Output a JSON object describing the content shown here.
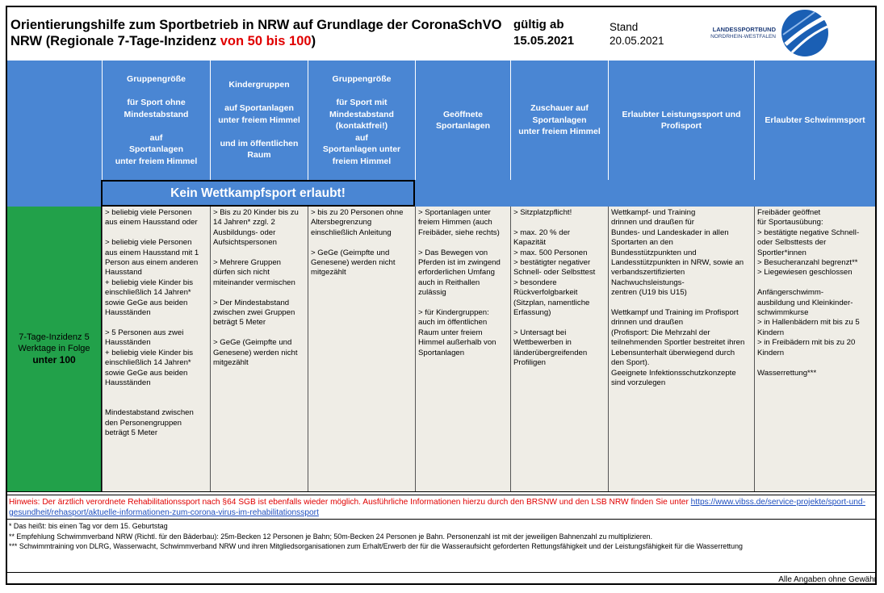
{
  "title": {
    "line1": "Orientierungshilfe zum Sportbetrieb in NRW auf Grundlage der CoronaSchVO",
    "line2_pre": "NRW (Regionale 7-Tage-Inzidenz ",
    "line2_red": "von 50 bis 100",
    "line2_post": ")"
  },
  "valid": {
    "label": "gültig ab",
    "date": "15.05.2021"
  },
  "stand": {
    "label": "Stand",
    "date": "20.05.2021"
  },
  "logo": {
    "line1": "LANDESSPORTBUND",
    "line2": "NORDRHEIN-WESTFALEN",
    "color": "#1a5fb4"
  },
  "colors": {
    "header_blue": "#4a86d3",
    "green": "#22a14a",
    "body_bg": "#efede6",
    "red": "#e00000"
  },
  "headers": [
    "",
    "Gruppengröße\n\nfür Sport ohne\nMindestabstand\n\nauf\nSportanlagen\nunter freiem Himmel",
    "Kindergruppen\n\nauf Sportanlagen\nunter freiem Himmel\n\nund im öffentlichen\nRaum",
    "Gruppengröße\n\nfür Sport mit\nMindestabstand\n(kontaktfrei!)\nauf\nSportanlagen unter\nfreiem Himmel",
    "Geöffnete\nSportanlagen",
    "Zuschauer auf\nSportanlagen\nunter freiem Himmel",
    "Erlaubter Leistungssport und\nProfisport",
    "Erlaubter Schwimmsport"
  ],
  "banner": "Kein Wettkampfsport erlaubt!",
  "row_label": {
    "line1": "7-Tage-Inzidenz 5\nWerktage in Folge",
    "line2": "unter 100"
  },
  "cells": [
    "> beliebig viele Personen\naus einem Hausstand oder\n\n> beliebig viele Personen\naus einem Hausstand mit 1\nPerson aus einem anderen\nHausstand\n+ beliebig viele Kinder bis\neinschließlich 14 Jahren*\nsowie GeGe aus beiden\nHausständen\n\n> 5 Personen aus zwei\nHausständen\n+ beliebig viele Kinder bis\neinschließlich 14 Jahren*\nsowie GeGe aus beiden\nHausständen\n\n\nMindestabstand zwischen\nden Personengruppen\nbeträgt 5 Meter",
    "> Bis zu 20 Kinder bis zu\n14 Jahren* zzgl. 2\nAusbildungs- oder\nAufsichtspersonen\n\n> Mehrere Gruppen\ndürfen sich nicht\nmiteinander vermischen\n\n> Der Mindestabstand\nzwischen zwei Gruppen\nbeträgt 5 Meter\n\n> GeGe (Geimpfte und\nGenesene) werden nicht\nmitgezählt",
    "> bis zu 20 Personen ohne\nAltersbegrenzung\neinschließlich Anleitung\n\n> GeGe (Geimpfte und\nGenesene) werden nicht\nmitgezählt",
    "> Sportanlagen unter\nfreiem Himmen (auch\nFreibäder, siehe rechts)\n\n> Das Bewegen von\nPferden ist im zwingend\nerforderlichen Umfang\nauch in Reithallen\nzulässig\n\n> für Kindergruppen:\nauch im öffentlichen\nRaum unter freiem\nHimmel außerhalb von\nSportanlagen",
    "> Sitzplatzpflicht!\n\n> max. 20 % der\nKapazität\n> max. 500 Personen\n> bestätigter negativer\nSchnell- oder Selbsttest\n> besondere\nRückverfolgbarkeit\n(Sitzplan, namentliche\nErfassung)\n\n> Untersagt bei\nWettbewerben in\nländerübergreifenden\nProfiligen",
    "Wettkampf- und Training\ndrinnen und draußen für\nBundes- und Landeskader in allen\nSportarten an den\nBundesstützpunkten und\nLandesstützpunkten in NRW, sowie an\nverbandszertifizierten\nNachwuchsleistungs-\nzentren (U19 bis U15)\n\nWettkampf und Training im Profisport\ndrinnen und draußen\n(Profisport: Die Mehrzahl der\nteilnehmenden Sportler bestreitet ihren\nLebensunterhalt überwiegend durch\nden Sport).\nGeeignete Infektionsschutzkonzepte\nsind vorzulegen",
    "Freibäder geöffnet\nfür Sportausübung:\n> bestätigte negative Schnell-\noder Selbsttests der\nSportler*innen\n> Besucheranzahl begrenzt**\n> Liegewiesen geschlossen\n\nAnfängerschwimm-\nausbildung und Kleinkinder-\nschwimmkurse\n> in Hallenbädern mit bis zu 5\nKindern\n> in Freibädern mit bis zu 20\nKindern\n\nWasserrettung***"
  ],
  "hint": {
    "red": "Hinweis: Der ärztlich verordnete Rehabilitationssport nach §64 SGB ist ebenfalls wieder möglich. Ausführliche Informationen hierzu durch den BRSNW und den LSB NRW finden Sie unter ",
    "link": "https://www.vibss.de/service-projekte/sport-und-gesundheit/rehasport/aktuelle-informationen-zum-corona-virus-im-rehabilitationssport"
  },
  "notes": [
    "* Das heißt: bis einen Tag vor dem 15. Geburtstag",
    "** Empfehlung Schwimmverband NRW (Richtl. für den Bäderbau): 25m-Becken 12 Personen je Bahn; 50m-Becken 24 Personen je Bahn. Personenzahl ist mit der jeweiligen Bahnenzahl zu multiplizieren.",
    "*** Schwimmtraining von DLRG, Wasserwacht, Schwimmverband NRW und ihren Mitgliedsorganisationen zum Erhalt/Erwerb der für die Wasseraufsicht geforderten Rettungsfähigkeit und der Leistungsfähigkeit für die Wasserrettung"
  ],
  "footer": "Alle Angaben ohne Gewähr"
}
